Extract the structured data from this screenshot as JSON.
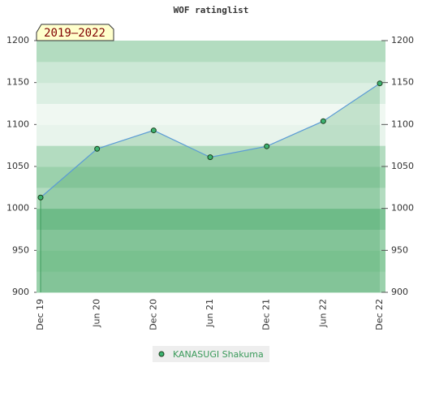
{
  "chart_data": {
    "type": "line",
    "title": "WOF ratinglist",
    "annotation": "2019–2022",
    "categories": [
      "Dec 19",
      "Jun 20",
      "Dec 20",
      "Jun 21",
      "Dec 21",
      "Jun 22",
      "Dec 22"
    ],
    "series": [
      {
        "name": "KANASUGI Shakuma",
        "color": "#5b9bd5",
        "values": [
          1013,
          1071,
          1093,
          1061,
          1074,
          1104,
          1149
        ]
      }
    ],
    "ylim": [
      900,
      1200
    ],
    "yticks": [
      900,
      950,
      1000,
      1050,
      1100,
      1150,
      1200
    ],
    "y2lim": [
      900,
      1200
    ],
    "y2ticks": [
      900,
      950,
      1000,
      1050,
      1100,
      1150,
      1200
    ]
  }
}
